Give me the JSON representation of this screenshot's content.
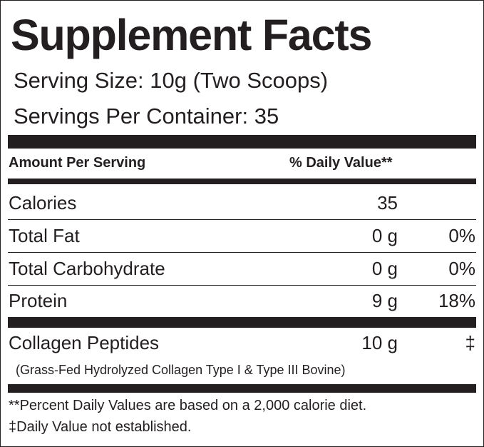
{
  "label": {
    "title": "Supplement Facts",
    "serving_size": "Serving Size: 10g (Two Scoops)",
    "servings_per_container": "Servings Per Container: 35",
    "header_amount": "Amount Per Serving",
    "header_daily_value": "% Daily Value**"
  },
  "nutrients": [
    {
      "name": "Calories",
      "amount": "35",
      "daily_value": ""
    },
    {
      "name": "Total Fat",
      "amount": "0 g",
      "daily_value": "0%"
    },
    {
      "name": "Total Carbohydrate",
      "amount": "0 g",
      "daily_value": "0%"
    },
    {
      "name": "Protein",
      "amount": "9 g",
      "daily_value": "18%"
    }
  ],
  "special": {
    "name": "Collagen Peptides",
    "amount": "10 g",
    "daily_value": "‡",
    "note": "(Grass-Fed Hydrolyzed Collagen Type I & Type III Bovine)"
  },
  "footnotes": {
    "percent_note": "**Percent Daily Values are based on a 2,000 calorie diet.",
    "dv_note": "‡Daily Value not established."
  },
  "colors": {
    "ink": "#231f20",
    "background": "#ffffff"
  }
}
